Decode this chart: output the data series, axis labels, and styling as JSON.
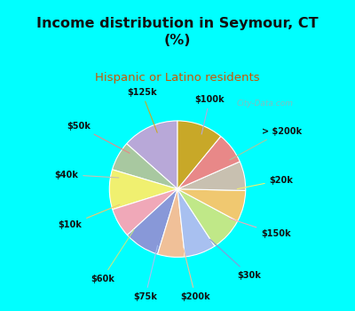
{
  "title": "Income distribution in Seymour, CT\n(%)",
  "subtitle": "Hispanic or Latino residents",
  "title_color": "#111111",
  "subtitle_color": "#cc5500",
  "bg_color": "#00ffff",
  "chart_bg": "#dff0e8",
  "watermark": "City-Data.com",
  "labels": [
    "$100k",
    "> $200k",
    "$20k",
    "$150k",
    "$30k",
    "$200k",
    "$75k",
    "$60k",
    "$10k",
    "$40k",
    "$50k",
    "$125k"
  ],
  "sizes": [
    13.5,
    7.0,
    9.5,
    7.0,
    8.5,
    6.5,
    7.5,
    8.0,
    7.5,
    7.0,
    7.5,
    11.0
  ],
  "colors": [
    "#b8a8d8",
    "#a8c8a0",
    "#f0f070",
    "#f0a8b8",
    "#8898d8",
    "#f0c098",
    "#a8c0f0",
    "#c0e888",
    "#f0c870",
    "#c8c0b0",
    "#e88888",
    "#c8a828"
  ],
  "startangle": 90,
  "line_colors": [
    "#b8a8d8",
    "#a8c8a0",
    "#f0f070",
    "#f0a8b8",
    "#8898d8",
    "#f0c098",
    "#a8c0f0",
    "#c0e888",
    "#f0c870",
    "#c8c0b0",
    "#e88888",
    "#c8a828"
  ]
}
